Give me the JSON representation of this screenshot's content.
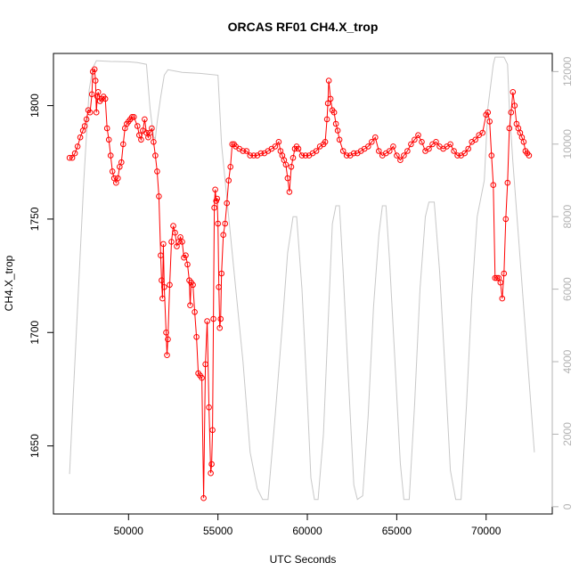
{
  "chart_data": {
    "type": "line",
    "title": "ORCAS RF01 CH4.X_trop",
    "xlabel": "UTC Seconds",
    "ylabel": "CH4.X_trop",
    "xlim": [
      45800,
      73700
    ],
    "ylim": [
      1620,
      1823
    ],
    "y2lim": [
      -200,
      12500
    ],
    "x_ticks": [
      50000,
      55000,
      60000,
      65000,
      70000
    ],
    "x_tick_labels": [
      "50000",
      "55000",
      "60000",
      "65000",
      "70000"
    ],
    "y_ticks": [
      1650,
      1700,
      1750,
      1800
    ],
    "y_tick_labels": [
      "1650",
      "1700",
      "1750",
      "1800"
    ],
    "y2_ticks": [
      0,
      2000,
      4000,
      6000,
      8000,
      10000,
      12000
    ],
    "y2_tick_labels": [
      "0",
      "2000",
      "4000",
      "6000",
      "8000",
      "10000",
      "12000"
    ],
    "grid": false,
    "series": [
      {
        "role": "ch4",
        "color": "#ff0000",
        "style": "line-with-open-circles",
        "points": [
          [
            46700,
            1777
          ],
          [
            46850,
            1777
          ],
          [
            47000,
            1779
          ],
          [
            47150,
            1782
          ],
          [
            47300,
            1786
          ],
          [
            47450,
            1789
          ],
          [
            47550,
            1791
          ],
          [
            47650,
            1794
          ],
          [
            47750,
            1798
          ],
          [
            47850,
            1797
          ],
          [
            47950,
            1805
          ],
          [
            48000,
            1815
          ],
          [
            48100,
            1816
          ],
          [
            48150,
            1811
          ],
          [
            48200,
            1797
          ],
          [
            48250,
            1804
          ],
          [
            48300,
            1806
          ],
          [
            48400,
            1802
          ],
          [
            48500,
            1803
          ],
          [
            48600,
            1804
          ],
          [
            48700,
            1803
          ],
          [
            48800,
            1790
          ],
          [
            48900,
            1785
          ],
          [
            49000,
            1778
          ],
          [
            49100,
            1771
          ],
          [
            49200,
            1768
          ],
          [
            49300,
            1766
          ],
          [
            49400,
            1768
          ],
          [
            49500,
            1773
          ],
          [
            49600,
            1775
          ],
          [
            49700,
            1783
          ],
          [
            49800,
            1790
          ],
          [
            49900,
            1792
          ],
          [
            50000,
            1793
          ],
          [
            50100,
            1794
          ],
          [
            50200,
            1795
          ],
          [
            50300,
            1795
          ],
          [
            50500,
            1791
          ],
          [
            50600,
            1787
          ],
          [
            50700,
            1785
          ],
          [
            50800,
            1789
          ],
          [
            50900,
            1794
          ],
          [
            51000,
            1788
          ],
          [
            51100,
            1786
          ],
          [
            51200,
            1788
          ],
          [
            51300,
            1790
          ],
          [
            51400,
            1784
          ],
          [
            51500,
            1778
          ],
          [
            51600,
            1771
          ],
          [
            51700,
            1760
          ],
          [
            51800,
            1734
          ],
          [
            51850,
            1723
          ],
          [
            51900,
            1715
          ],
          [
            51950,
            1739
          ],
          [
            52000,
            1720
          ],
          [
            52100,
            1700
          ],
          [
            52150,
            1690
          ],
          [
            52200,
            1697
          ],
          [
            52300,
            1721
          ],
          [
            52400,
            1740
          ],
          [
            52500,
            1747
          ],
          [
            52600,
            1744
          ],
          [
            52700,
            1738
          ],
          [
            52800,
            1740
          ],
          [
            52900,
            1742
          ],
          [
            53000,
            1740
          ],
          [
            53100,
            1733
          ],
          [
            53200,
            1734
          ],
          [
            53300,
            1730
          ],
          [
            53400,
            1723
          ],
          [
            53450,
            1712
          ],
          [
            53500,
            1722
          ],
          [
            53600,
            1721
          ],
          [
            53700,
            1709
          ],
          [
            53800,
            1698
          ],
          [
            53900,
            1682
          ],
          [
            54000,
            1681
          ],
          [
            54100,
            1680
          ],
          [
            54200,
            1627
          ],
          [
            54300,
            1686
          ],
          [
            54400,
            1705
          ],
          [
            54500,
            1667
          ],
          [
            54600,
            1638
          ],
          [
            54650,
            1642
          ],
          [
            54700,
            1657
          ],
          [
            54750,
            1706
          ],
          [
            54800,
            1755
          ],
          [
            54850,
            1763
          ],
          [
            54900,
            1758
          ],
          [
            54950,
            1759
          ],
          [
            55000,
            1748
          ],
          [
            55050,
            1720
          ],
          [
            55100,
            1702
          ],
          [
            55150,
            1706
          ],
          [
            55200,
            1726
          ],
          [
            55300,
            1743
          ],
          [
            55400,
            1748
          ],
          [
            55500,
            1757
          ],
          [
            55600,
            1767
          ],
          [
            55700,
            1773
          ],
          [
            55800,
            1783
          ],
          [
            55900,
            1783
          ],
          [
            56000,
            1782
          ],
          [
            56200,
            1781
          ],
          [
            56400,
            1780
          ],
          [
            56600,
            1780
          ],
          [
            56800,
            1778
          ],
          [
            57000,
            1778
          ],
          [
            57200,
            1778
          ],
          [
            57400,
            1779
          ],
          [
            57600,
            1779
          ],
          [
            57800,
            1780
          ],
          [
            58000,
            1781
          ],
          [
            58200,
            1782
          ],
          [
            58400,
            1784
          ],
          [
            58500,
            1780
          ],
          [
            58600,
            1778
          ],
          [
            58700,
            1776
          ],
          [
            58800,
            1774
          ],
          [
            58900,
            1768
          ],
          [
            59000,
            1762
          ],
          [
            59100,
            1773
          ],
          [
            59200,
            1777
          ],
          [
            59300,
            1781
          ],
          [
            59400,
            1782
          ],
          [
            59500,
            1781
          ],
          [
            59700,
            1778
          ],
          [
            59900,
            1778
          ],
          [
            60100,
            1778
          ],
          [
            60300,
            1779
          ],
          [
            60500,
            1780
          ],
          [
            60700,
            1782
          ],
          [
            60900,
            1783
          ],
          [
            61000,
            1784
          ],
          [
            61100,
            1794
          ],
          [
            61150,
            1801
          ],
          [
            61200,
            1811
          ],
          [
            61300,
            1803
          ],
          [
            61400,
            1798
          ],
          [
            61500,
            1797
          ],
          [
            61600,
            1792
          ],
          [
            61700,
            1789
          ],
          [
            61800,
            1785
          ],
          [
            62000,
            1780
          ],
          [
            62200,
            1778
          ],
          [
            62400,
            1778
          ],
          [
            62600,
            1779
          ],
          [
            62800,
            1779
          ],
          [
            63000,
            1780
          ],
          [
            63200,
            1781
          ],
          [
            63400,
            1782
          ],
          [
            63600,
            1784
          ],
          [
            63800,
            1786
          ],
          [
            64000,
            1780
          ],
          [
            64200,
            1778
          ],
          [
            64400,
            1779
          ],
          [
            64600,
            1780
          ],
          [
            64800,
            1782
          ],
          [
            65000,
            1778
          ],
          [
            65200,
            1776
          ],
          [
            65400,
            1778
          ],
          [
            65600,
            1780
          ],
          [
            65800,
            1783
          ],
          [
            66000,
            1785
          ],
          [
            66200,
            1787
          ],
          [
            66400,
            1784
          ],
          [
            66600,
            1780
          ],
          [
            66800,
            1781
          ],
          [
            67000,
            1783
          ],
          [
            67200,
            1784
          ],
          [
            67400,
            1782
          ],
          [
            67600,
            1781
          ],
          [
            67800,
            1782
          ],
          [
            68000,
            1783
          ],
          [
            68200,
            1780
          ],
          [
            68400,
            1778
          ],
          [
            68600,
            1778
          ],
          [
            68800,
            1779
          ],
          [
            69000,
            1781
          ],
          [
            69200,
            1784
          ],
          [
            69400,
            1785
          ],
          [
            69600,
            1787
          ],
          [
            69800,
            1788
          ],
          [
            70000,
            1796
          ],
          [
            70100,
            1797
          ],
          [
            70200,
            1793
          ],
          [
            70300,
            1778
          ],
          [
            70400,
            1765
          ],
          [
            70500,
            1724
          ],
          [
            70600,
            1724
          ],
          [
            70700,
            1724
          ],
          [
            70800,
            1722
          ],
          [
            70900,
            1715
          ],
          [
            71000,
            1726
          ],
          [
            71100,
            1750
          ],
          [
            71200,
            1766
          ],
          [
            71300,
            1790
          ],
          [
            71400,
            1797
          ],
          [
            71500,
            1806
          ],
          [
            71600,
            1800
          ],
          [
            71700,
            1792
          ],
          [
            71800,
            1790
          ],
          [
            71900,
            1788
          ],
          [
            72000,
            1786
          ],
          [
            72100,
            1784
          ],
          [
            72200,
            1780
          ],
          [
            72300,
            1779
          ],
          [
            72400,
            1778
          ]
        ]
      },
      {
        "role": "altitude",
        "color": "#c8c8c8",
        "style": "line",
        "points": [
          [
            46700,
            900
          ],
          [
            46900,
            3000
          ],
          [
            47200,
            6000
          ],
          [
            47500,
            9000
          ],
          [
            47800,
            11500
          ],
          [
            48000,
            12100
          ],
          [
            48200,
            12300
          ],
          [
            49000,
            12280
          ],
          [
            50000,
            12270
          ],
          [
            50500,
            12250
          ],
          [
            51000,
            12200
          ],
          [
            51200,
            11000
          ],
          [
            51400,
            10200
          ],
          [
            51500,
            10150
          ],
          [
            51600,
            10600
          ],
          [
            51800,
            11300
          ],
          [
            52000,
            11900
          ],
          [
            52200,
            12050
          ],
          [
            53000,
            11980
          ],
          [
            54000,
            11950
          ],
          [
            55000,
            11900
          ],
          [
            55200,
            10000
          ],
          [
            55600,
            8000
          ],
          [
            56000,
            6000
          ],
          [
            56400,
            4000
          ],
          [
            56800,
            1500
          ],
          [
            57200,
            500
          ],
          [
            57500,
            200
          ],
          [
            57800,
            200
          ],
          [
            58200,
            2500
          ],
          [
            58600,
            5000
          ],
          [
            58900,
            7000
          ],
          [
            59200,
            8000
          ],
          [
            59400,
            8000
          ],
          [
            59700,
            6000
          ],
          [
            60000,
            3000
          ],
          [
            60200,
            800
          ],
          [
            60400,
            200
          ],
          [
            60600,
            200
          ],
          [
            60900,
            2000
          ],
          [
            61200,
            5500
          ],
          [
            61400,
            7800
          ],
          [
            61600,
            8300
          ],
          [
            61800,
            8300
          ],
          [
            62000,
            6500
          ],
          [
            62300,
            3500
          ],
          [
            62600,
            600
          ],
          [
            62800,
            200
          ],
          [
            63100,
            300
          ],
          [
            63400,
            2500
          ],
          [
            63700,
            5500
          ],
          [
            64000,
            7500
          ],
          [
            64200,
            8300
          ],
          [
            64400,
            8300
          ],
          [
            64600,
            6800
          ],
          [
            64900,
            4000
          ],
          [
            65200,
            1200
          ],
          [
            65400,
            200
          ],
          [
            65700,
            200
          ],
          [
            66000,
            2800
          ],
          [
            66300,
            6000
          ],
          [
            66600,
            8000
          ],
          [
            66800,
            8400
          ],
          [
            67100,
            8400
          ],
          [
            67400,
            6500
          ],
          [
            67700,
            3800
          ],
          [
            68000,
            1000
          ],
          [
            68300,
            200
          ],
          [
            68600,
            200
          ],
          [
            68900,
            2800
          ],
          [
            69200,
            5800
          ],
          [
            69500,
            8000
          ],
          [
            69700,
            8500
          ],
          [
            69900,
            9000
          ],
          [
            70100,
            11000
          ],
          [
            70400,
            12200
          ],
          [
            70500,
            12400
          ],
          [
            71000,
            12400
          ],
          [
            71200,
            12200
          ],
          [
            71300,
            11000
          ],
          [
            71500,
            9500
          ],
          [
            71800,
            7500
          ],
          [
            72100,
            5500
          ],
          [
            72400,
            3500
          ],
          [
            72700,
            1500
          ]
        ]
      }
    ]
  }
}
